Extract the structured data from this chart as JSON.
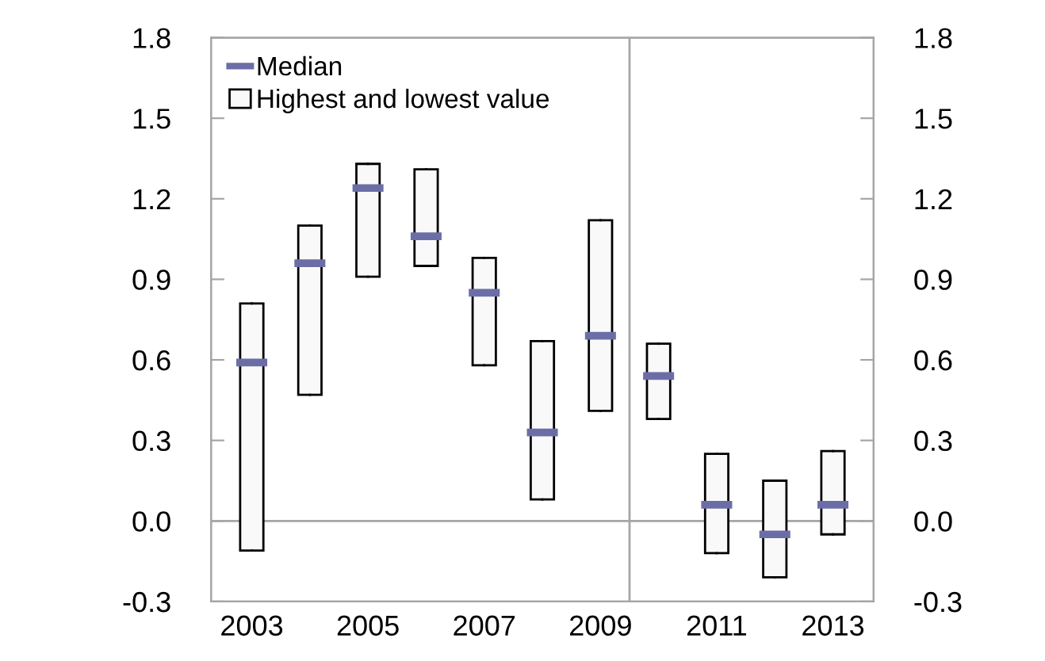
{
  "chart_data": {
    "type": "box",
    "categories": [
      "2003",
      null,
      "2005",
      null,
      "2007",
      null,
      "2009",
      null,
      "2011",
      null,
      "2013"
    ],
    "series": [
      {
        "name": "Highest and lowest value",
        "color": "#f9f9f9",
        "boxes": [
          {
            "low": -0.11,
            "q1": -0.11,
            "median": 0.59,
            "q3": 0.81,
            "high": 0.81
          },
          {
            "low": 0.47,
            "q1": 0.47,
            "median": 0.96,
            "q3": 1.1,
            "high": 1.1
          },
          {
            "low": 0.91,
            "q1": 0.91,
            "median": 1.24,
            "q3": 1.33,
            "high": 1.33
          },
          {
            "low": 0.95,
            "q1": 0.95,
            "median": 1.06,
            "q3": 1.31,
            "high": 1.31
          },
          {
            "low": 0.58,
            "q1": 0.58,
            "median": 0.85,
            "q3": 0.98,
            "high": 0.98
          },
          {
            "low": 0.08,
            "q1": 0.08,
            "median": 0.33,
            "q3": 0.67,
            "high": 0.67
          },
          {
            "low": 0.41,
            "q1": 0.41,
            "median": 0.69,
            "q3": 1.12,
            "high": 1.12
          },
          {
            "low": 0.38,
            "q1": 0.38,
            "median": 0.54,
            "q3": 0.66,
            "high": 0.66
          },
          {
            "low": -0.12,
            "q1": -0.12,
            "median": 0.06,
            "q3": 0.25,
            "high": 0.25
          },
          {
            "low": -0.21,
            "q1": -0.21,
            "median": -0.05,
            "q3": 0.15,
            "high": 0.15
          },
          {
            "low": -0.05,
            "q1": -0.05,
            "median": 0.06,
            "q3": 0.26,
            "high": 0.26
          }
        ]
      }
    ],
    "annotations": [
      "Median"
    ],
    "ylim": [
      -0.3,
      1.8
    ],
    "yticks": [
      -0.3,
      {
        "value": 0,
        "label": "0.0"
      },
      0.3,
      0.6,
      0.9,
      1.2,
      1.5,
      1.8
    ],
    "y2lim": [
      -0.3,
      1.8
    ],
    "y2ticks": [
      -0.3,
      {
        "value": 0,
        "label": "0.0"
      },
      0.3,
      0.6,
      0.9,
      1.2,
      1.5,
      1.8
    ],
    "ref_lines": [
      {
        "axis": "y",
        "value": 0,
        "color": "#a6a6a6"
      }
    ],
    "legend": "top left"
  }
}
